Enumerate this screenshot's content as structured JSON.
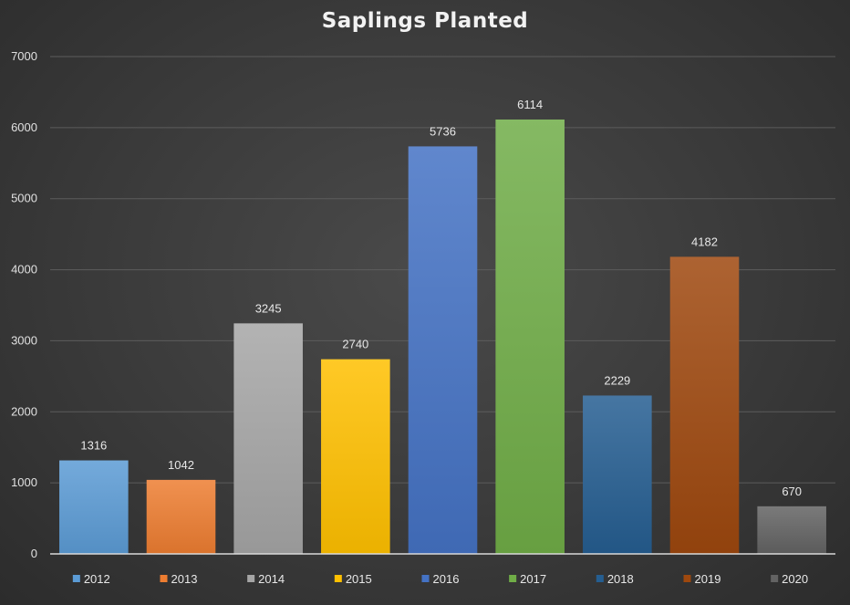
{
  "chart_data": {
    "type": "bar",
    "title": "Saplings Planted",
    "categories": [
      "2012",
      "2013",
      "2014",
      "2015",
      "2016",
      "2017",
      "2018",
      "2019",
      "2020"
    ],
    "values": [
      1316,
      1042,
      3245,
      2740,
      5736,
      6114,
      2229,
      4182,
      670
    ],
    "colors": [
      "#5b9bd5",
      "#ed7d31",
      "#a5a5a5",
      "#ffc000",
      "#4472c4",
      "#70ad47",
      "#255e91",
      "#9e480e",
      "#636363"
    ],
    "ylim": [
      0,
      7000
    ],
    "yticks": [
      0,
      1000,
      2000,
      3000,
      4000,
      5000,
      6000,
      7000
    ],
    "xlabel": "",
    "ylabel": "",
    "grid": true,
    "legend": "bottom",
    "data_labels": true
  }
}
